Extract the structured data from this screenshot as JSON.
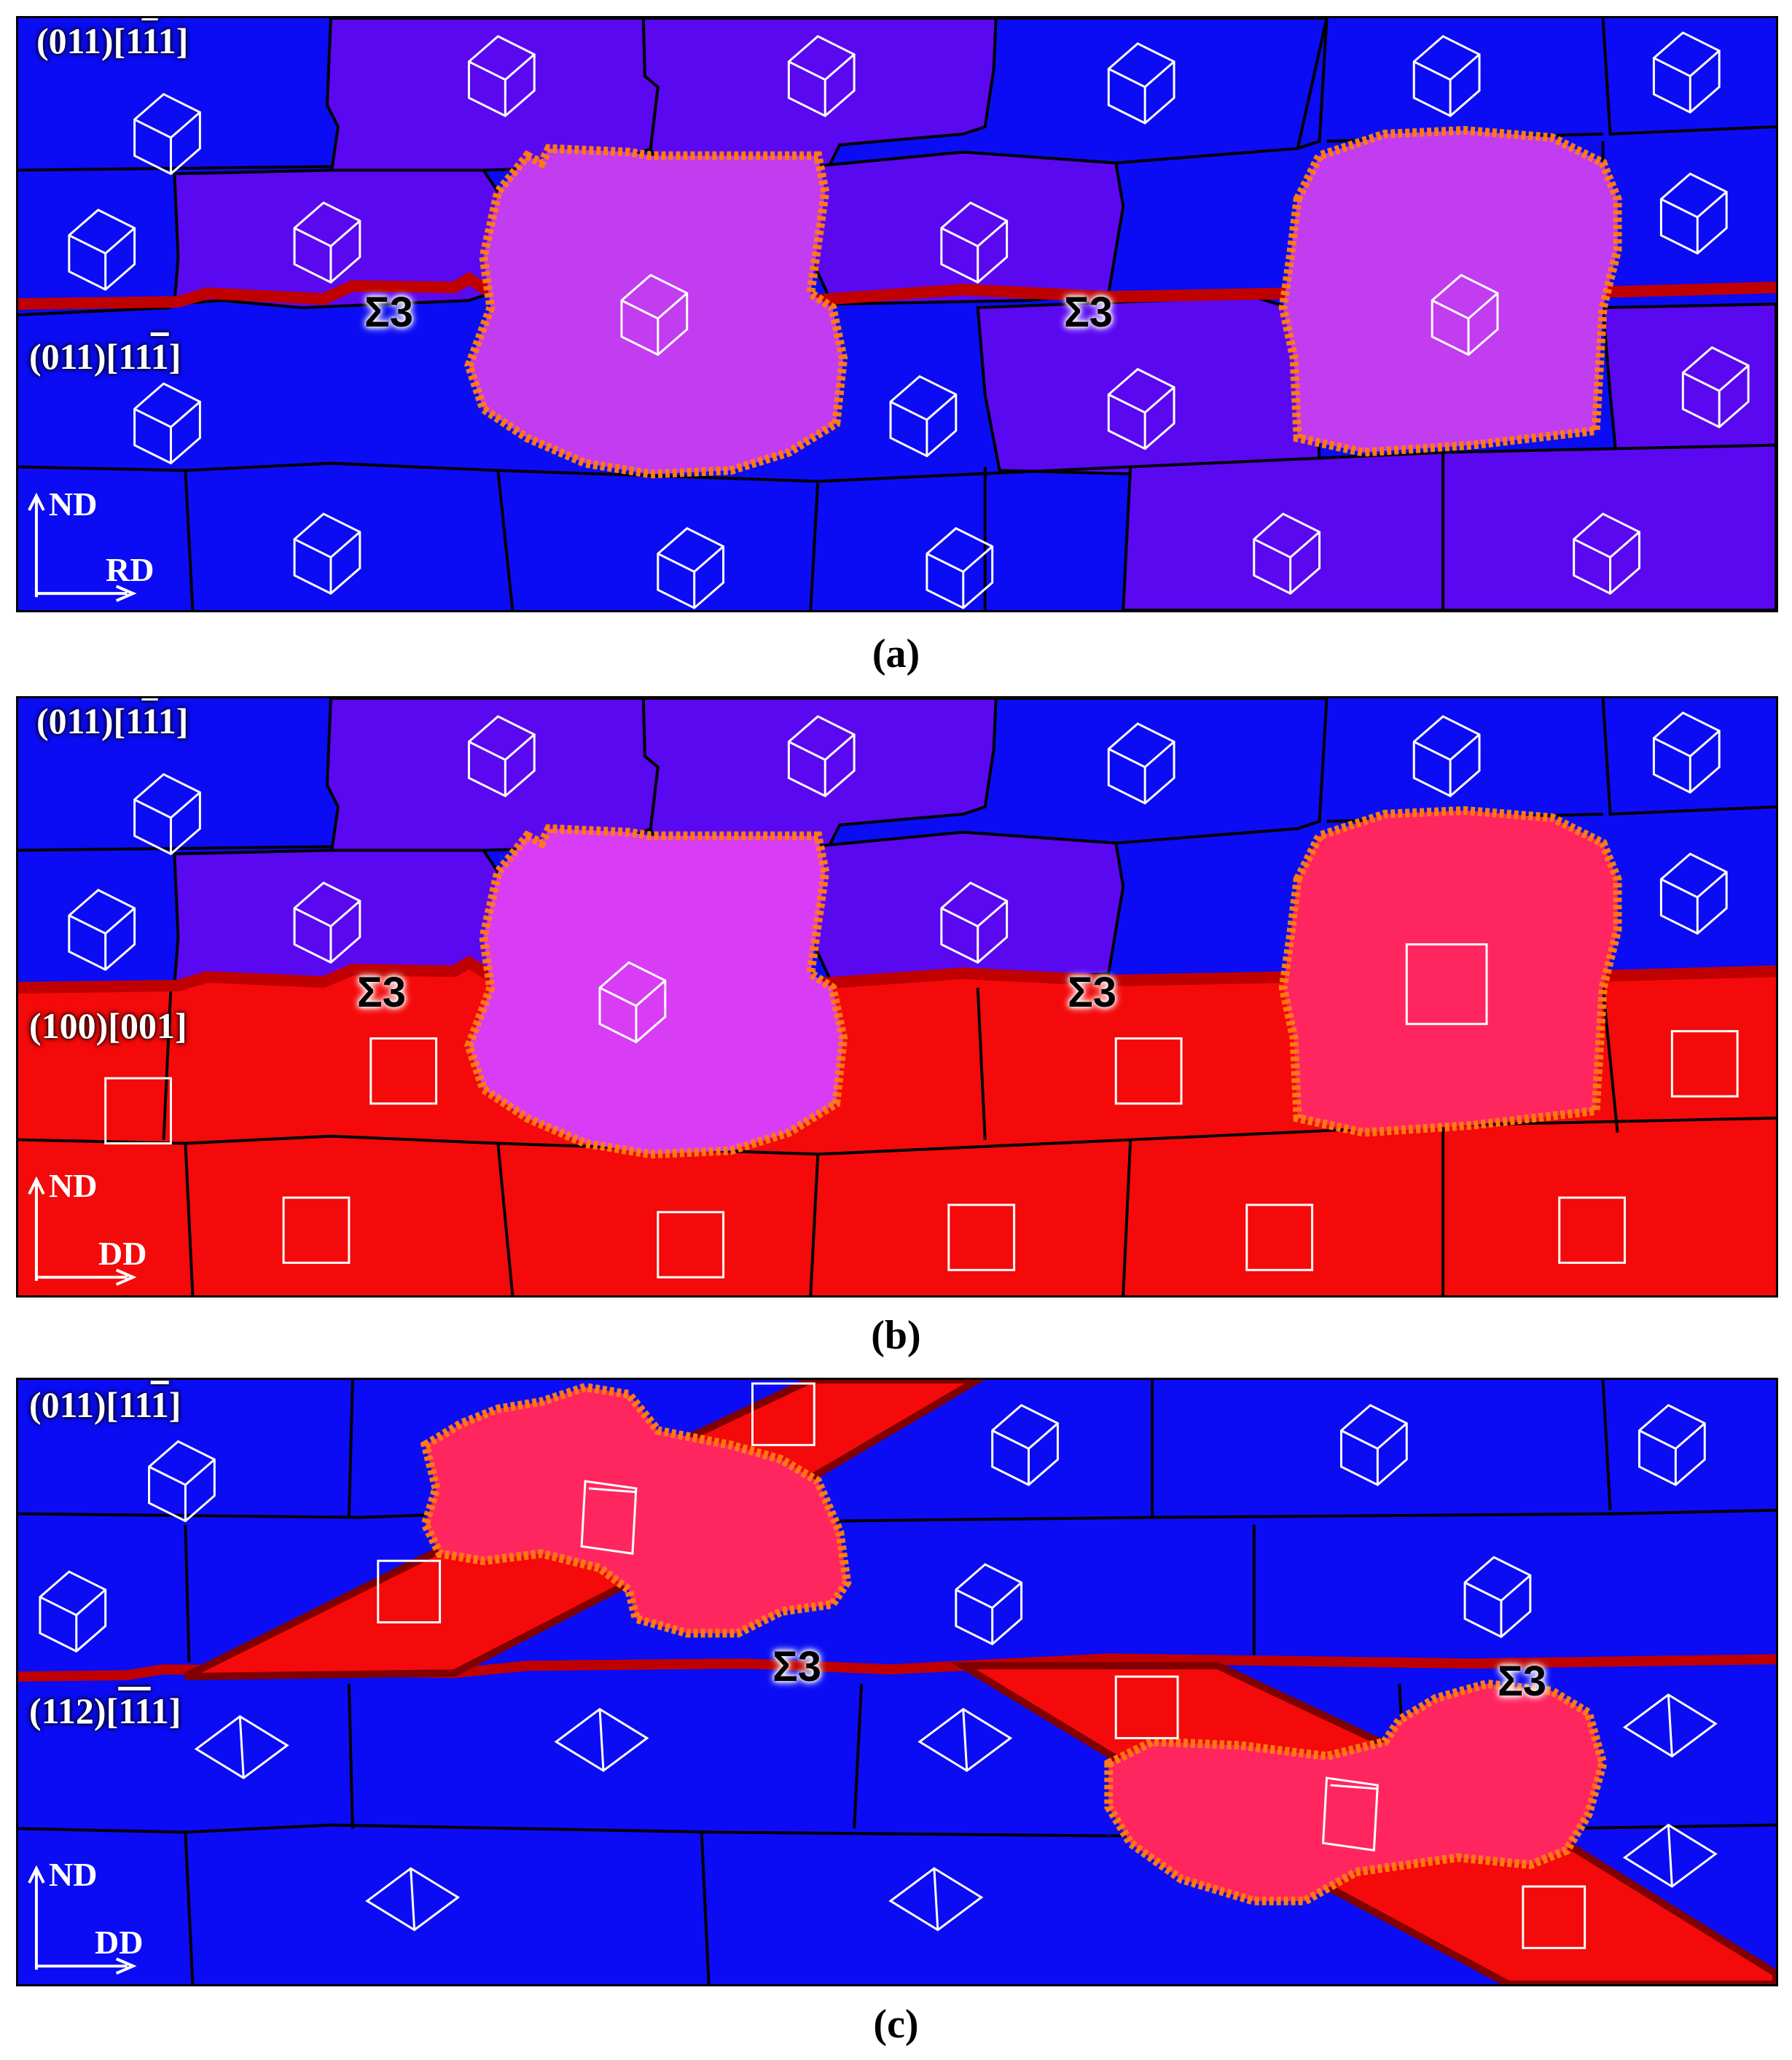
{
  "panels": [
    {
      "caption": "(a)",
      "labels": [
        {
          "pre": "(011)[1",
          "bar": "1",
          "post": "1]"
        },
        {
          "pre": "(011)[11",
          "bar": "1",
          "post": "]"
        }
      ],
      "sigma": [
        "Σ3",
        "Σ3"
      ],
      "axes": {
        "vertical": "ND",
        "horizontal": "RD"
      }
    },
    {
      "caption": "(b)",
      "labels": [
        {
          "pre": "(011)[1",
          "bar": "1",
          "post": "1]"
        },
        {
          "pre": "(100)[001]",
          "bar": "",
          "post": ""
        }
      ],
      "sigma": [
        "Σ3",
        "Σ3"
      ],
      "axes": {
        "vertical": "ND",
        "horizontal": "DD"
      }
    },
    {
      "caption": "(c)",
      "labels": [
        {
          "pre": "(011)[11",
          "bar": "1",
          "post": "]"
        },
        {
          "pre": "(112)[",
          "bar": "11",
          "post": "1]"
        }
      ],
      "sigma": [
        "Σ3",
        "Σ3"
      ],
      "axes": {
        "vertical": "ND",
        "horizontal": "DD"
      }
    }
  ],
  "colors": {
    "blue_grain": "#0b0cf3",
    "violet_grain": "#5a08f0",
    "purple_grain": "#7a1ce8",
    "pink_grain": "#c23cf0",
    "magenta_grain": "#d93cf5",
    "red_grain": "#f40a0a",
    "rose_grain": "#ff2660",
    "twin_boundary": "#c00000",
    "growth_front": "#ff7a10"
  }
}
